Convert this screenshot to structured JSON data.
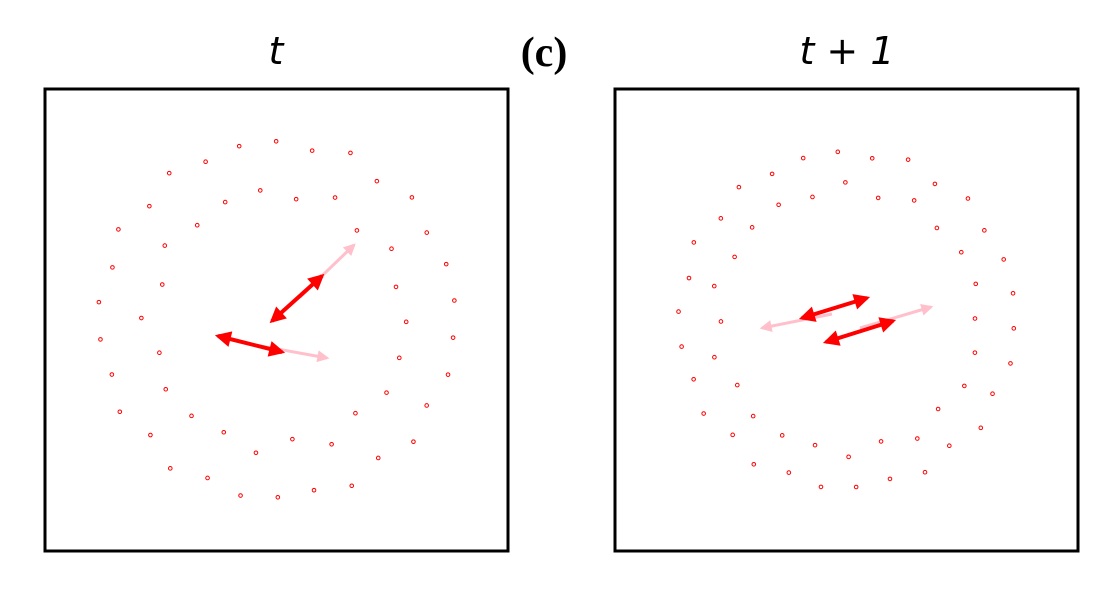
{
  "panel_label": "(c)",
  "panels": [
    {
      "title": "t"
    },
    {
      "title": "t + 1"
    }
  ]
}
